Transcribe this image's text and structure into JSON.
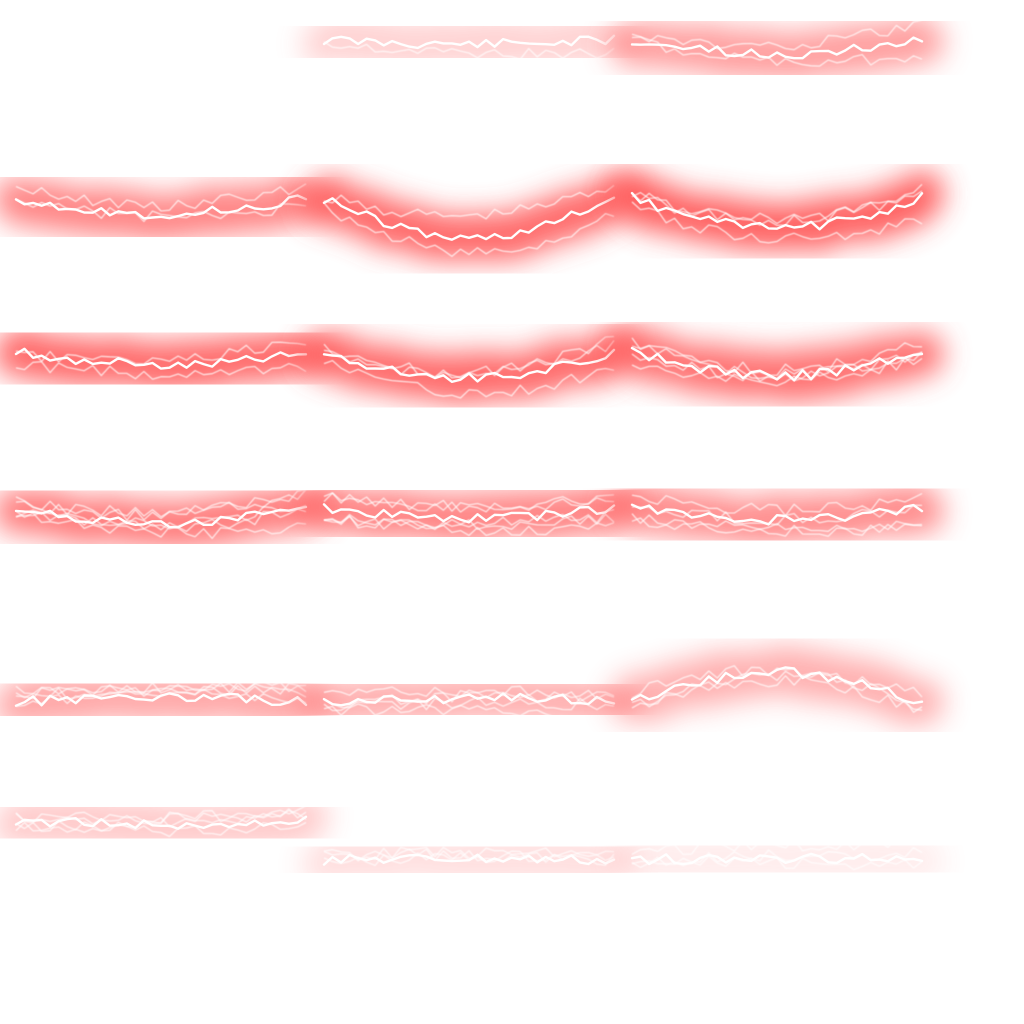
{
  "sprite_sheet": {
    "background_color": "#ffffff",
    "glow_color": "#ff4d4d",
    "bolt_color": "#ffffff",
    "columns": 3,
    "rows": 6,
    "frame_count": 17,
    "frames": [
      {
        "index": 1,
        "empty": true,
        "glow_opacity": 0,
        "sag": 0,
        "branches": 0,
        "seed": 0
      },
      {
        "index": 2,
        "empty": false,
        "glow_opacity": 0.25,
        "sag": 4,
        "branches": 1,
        "seed": 11
      },
      {
        "index": 3,
        "empty": false,
        "glow_opacity": 0.55,
        "sag": 14,
        "branches": 2,
        "seed": 23
      },
      {
        "index": 4,
        "empty": false,
        "glow_opacity": 0.7,
        "sag": 16,
        "branches": 2,
        "seed": 37
      },
      {
        "index": 5,
        "empty": false,
        "glow_opacity": 0.85,
        "sag": 40,
        "branches": 2,
        "seed": 41
      },
      {
        "index": 6,
        "empty": false,
        "glow_opacity": 0.9,
        "sag": 30,
        "branches": 3,
        "seed": 53
      },
      {
        "index": 7,
        "empty": false,
        "glow_opacity": 0.85,
        "sag": 12,
        "branches": 2,
        "seed": 61
      },
      {
        "index": 8,
        "empty": false,
        "glow_opacity": 0.85,
        "sag": 26,
        "branches": 3,
        "seed": 73
      },
      {
        "index": 9,
        "empty": false,
        "glow_opacity": 0.8,
        "sag": 24,
        "branches": 4,
        "seed": 89
      },
      {
        "index": 10,
        "empty": false,
        "glow_opacity": 0.75,
        "sag": 16,
        "branches": 5,
        "seed": 97
      },
      {
        "index": 11,
        "empty": false,
        "glow_opacity": 0.7,
        "sag": 10,
        "branches": 5,
        "seed": 101
      },
      {
        "index": 12,
        "empty": false,
        "glow_opacity": 0.65,
        "sag": 12,
        "branches": 4,
        "seed": 113
      },
      {
        "index": 13,
        "empty": false,
        "glow_opacity": 0.5,
        "sag": -6,
        "branches": 4,
        "seed": 127
      },
      {
        "index": 14,
        "empty": false,
        "glow_opacity": 0.45,
        "sag": -4,
        "branches": 4,
        "seed": 131
      },
      {
        "index": 15,
        "empty": false,
        "glow_opacity": 0.45,
        "sag": -30,
        "branches": 3,
        "seed": 149
      },
      {
        "index": 16,
        "empty": false,
        "glow_opacity": 0.3,
        "sag": 4,
        "branches": 4,
        "seed": 157
      },
      {
        "index": 17,
        "empty": false,
        "glow_opacity": 0.18,
        "sag": -2,
        "branches": 3,
        "seed": 163
      },
      {
        "index": 18,
        "empty": false,
        "glow_opacity": 0.1,
        "sag": -2,
        "branches": 3,
        "seed": 173
      }
    ]
  }
}
